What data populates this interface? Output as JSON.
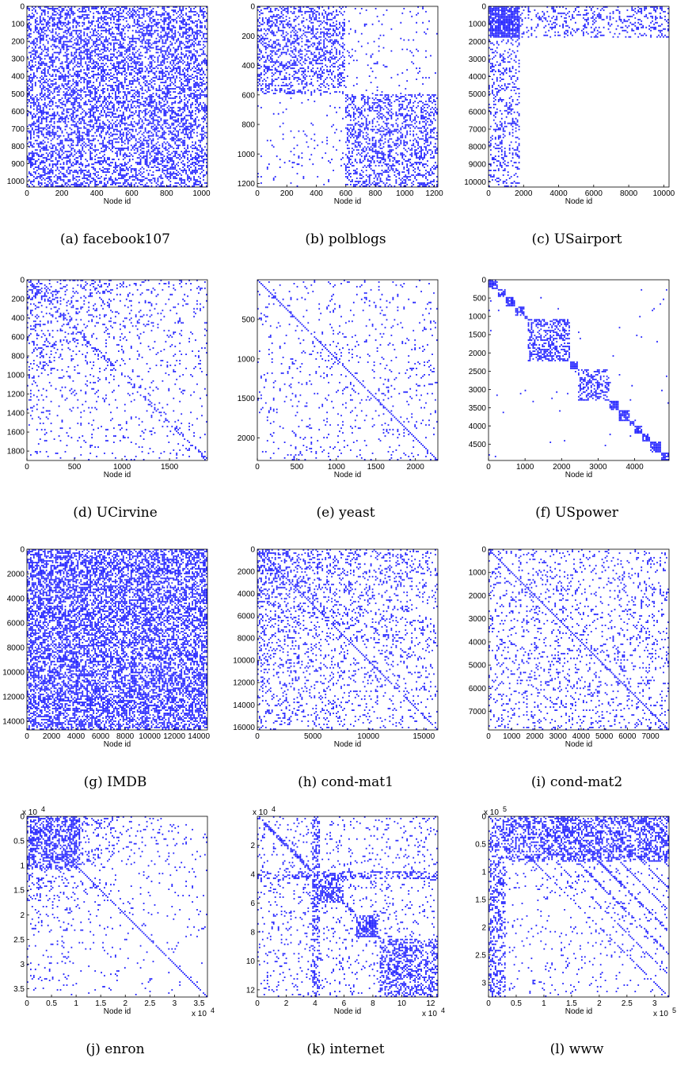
{
  "colors": {
    "dots": "#1515ff",
    "axis": "#000000"
  },
  "chart_data": [
    {
      "type": "heatmap",
      "panel": "facebook107",
      "caption": "(a)  facebook107",
      "xlabel": "Node id",
      "range": [
        0,
        1034
      ],
      "xticks": [
        "0",
        "200",
        "400",
        "600",
        "800",
        "1000"
      ],
      "xtick_values": [
        0,
        200,
        400,
        600,
        800,
        1000
      ],
      "yticks": [
        "0",
        "100",
        "200",
        "300",
        "400",
        "500",
        "600",
        "700",
        "800",
        "900",
        "1000"
      ],
      "ytick_values": [
        0,
        100,
        200,
        300,
        400,
        500,
        600,
        700,
        800,
        900,
        1000
      ],
      "x_multiplier": "",
      "y_multiplier": "",
      "pattern": "dense uniform",
      "density": 0.42
    },
    {
      "type": "heatmap",
      "panel": "polblogs",
      "caption": "(b)  polblogs",
      "xlabel": "Node id",
      "range": [
        0,
        1224
      ],
      "xticks": [
        "0",
        "200",
        "400",
        "600",
        "800",
        "1000",
        "1200"
      ],
      "xtick_values": [
        0,
        200,
        400,
        600,
        800,
        1000,
        1200
      ],
      "yticks": [
        "0",
        "200",
        "400",
        "600",
        "800",
        "1000",
        "1200"
      ],
      "ytick_values": [
        0,
        200,
        400,
        600,
        800,
        1000,
        1200
      ],
      "x_multiplier": "",
      "y_multiplier": "",
      "pattern": "two diagonal blocks split near 600",
      "density": 0.3
    },
    {
      "type": "heatmap",
      "panel": "USairport",
      "caption": "(c)  USairport",
      "xlabel": "Node id",
      "range": [
        0,
        10300
      ],
      "xticks": [
        "0",
        "2000",
        "4000",
        "6000",
        "8000",
        "10000"
      ],
      "xtick_values": [
        0,
        2000,
        4000,
        6000,
        8000,
        10000
      ],
      "yticks": [
        "0",
        "1000",
        "2000",
        "3000",
        "4000",
        "5000",
        "6000",
        "7000",
        "8000",
        "9000",
        "10000"
      ],
      "ytick_values": [
        0,
        1000,
        2000,
        3000,
        4000,
        5000,
        6000,
        7000,
        8000,
        9000,
        10000
      ],
      "x_multiplier": "",
      "y_multiplier": "",
      "pattern": "dense core below 1800 with strips",
      "density": 0.3
    },
    {
      "type": "heatmap",
      "panel": "UCirvine",
      "caption": "(d)  UCirvine",
      "xlabel": "Node id",
      "range": [
        0,
        1899
      ],
      "xticks": [
        "0",
        "500",
        "1000",
        "1500"
      ],
      "xtick_values": [
        0,
        500,
        1000,
        1500
      ],
      "yticks": [
        "0",
        "200",
        "400",
        "600",
        "800",
        "1000",
        "1200",
        "1400",
        "1600",
        "1800"
      ],
      "ytick_values": [
        0,
        200,
        400,
        600,
        800,
        1000,
        1200,
        1400,
        1600,
        1800
      ],
      "x_multiplier": "",
      "y_multiplier": "",
      "pattern": "core-periphery, dense at low ids",
      "density": 0.2
    },
    {
      "type": "heatmap",
      "panel": "yeast",
      "caption": "(e)  yeast",
      "xlabel": "Node id",
      "range": [
        0,
        2284
      ],
      "xticks": [
        "0",
        "500",
        "1000",
        "1500",
        "2000"
      ],
      "xtick_values": [
        0,
        500,
        1000,
        1500,
        2000
      ],
      "yticks": [
        "500",
        "1000",
        "1500",
        "2000"
      ],
      "ytick_values": [
        500,
        1000,
        1500,
        2000
      ],
      "x_multiplier": "",
      "y_multiplier": "",
      "pattern": "sparse with diagonal",
      "density": 0.08
    },
    {
      "type": "heatmap",
      "panel": "USpower",
      "caption": "(f)  USpower",
      "xlabel": "Node id",
      "range": [
        0,
        4941
      ],
      "xticks": [
        "0",
        "1000",
        "2000",
        "3000",
        "4000"
      ],
      "xtick_values": [
        0,
        1000,
        2000,
        3000,
        4000
      ],
      "yticks": [
        "0",
        "500",
        "1000",
        "1500",
        "2000",
        "2500",
        "3000",
        "3500",
        "4000",
        "4500"
      ],
      "ytick_values": [
        0,
        500,
        1000,
        1500,
        2000,
        2500,
        3000,
        3500,
        4000,
        4500
      ],
      "x_multiplier": "",
      "y_multiplier": "",
      "pattern": "block diagonal",
      "density": 0.02
    },
    {
      "type": "heatmap",
      "panel": "IMDB",
      "caption": "(g)  IMDB",
      "xlabel": "Node id",
      "range": [
        0,
        14700
      ],
      "xticks": [
        "0",
        "2000",
        "4000",
        "6000",
        "8000",
        "10000",
        "12000",
        "14000"
      ],
      "xtick_values": [
        0,
        2000,
        4000,
        6000,
        8000,
        10000,
        12000,
        14000
      ],
      "yticks": [
        "0",
        "2000",
        "4000",
        "6000",
        "8000",
        "10000",
        "12000",
        "14000"
      ],
      "ytick_values": [
        0,
        2000,
        4000,
        6000,
        8000,
        10000,
        12000,
        14000
      ],
      "x_multiplier": "",
      "y_multiplier": "",
      "pattern": "very dense uniform",
      "density": 0.55
    },
    {
      "type": "heatmap",
      "panel": "cond-mat1",
      "caption": "(h)  cond-mat1",
      "xlabel": "Node id",
      "range": [
        0,
        16264
      ],
      "xticks": [
        "0",
        "5000",
        "10000",
        "15000"
      ],
      "xtick_values": [
        0,
        5000,
        10000,
        15000
      ],
      "yticks": [
        "0",
        "2000",
        "4000",
        "6000",
        "8000",
        "10000",
        "12000",
        "14000",
        "16000"
      ],
      "ytick_values": [
        0,
        2000,
        4000,
        6000,
        8000,
        10000,
        12000,
        14000,
        16000
      ],
      "x_multiplier": "",
      "y_multiplier": "",
      "pattern": "dense upper-left fading, with diagonal",
      "density": 0.3
    },
    {
      "type": "heatmap",
      "panel": "cond-mat2",
      "caption": "(i)  cond-mat2",
      "xlabel": "Node id",
      "range": [
        0,
        7800
      ],
      "xticks": [
        "0",
        "1000",
        "2000",
        "3000",
        "4000",
        "5000",
        "6000",
        "7000"
      ],
      "xtick_values": [
        0,
        1000,
        2000,
        3000,
        4000,
        5000,
        6000,
        7000
      ],
      "yticks": [
        "0",
        "1000",
        "2000",
        "3000",
        "4000",
        "5000",
        "6000",
        "7000"
      ],
      "ytick_values": [
        0,
        1000,
        2000,
        3000,
        4000,
        5000,
        6000,
        7000
      ],
      "x_multiplier": "",
      "y_multiplier": "",
      "pattern": "sparse uniform with diagonal",
      "density": 0.12
    },
    {
      "type": "heatmap",
      "panel": "enron",
      "caption": "(j)  enron",
      "xlabel": "Node id",
      "range": [
        0,
        3.67
      ],
      "xticks": [
        "0",
        "0.5",
        "1",
        "1.5",
        "2",
        "2.5",
        "3",
        "3.5"
      ],
      "xtick_values": [
        0,
        0.5,
        1,
        1.5,
        2,
        2.5,
        3,
        3.5
      ],
      "yticks": [
        "0",
        "0.5",
        "1",
        "1.5",
        "2",
        "2.5",
        "3",
        "3.5"
      ],
      "ytick_values": [
        0,
        0.5,
        1,
        1.5,
        2,
        2.5,
        3,
        3.5
      ],
      "x_multiplier": "x 10",
      "y_multiplier": "x 10",
      "multiplier_exponent": "4",
      "pattern": "dense upper-left triangle with diagonal",
      "density": 0.3
    },
    {
      "type": "heatmap",
      "panel": "internet",
      "caption": "(k)  internet",
      "xlabel": "Node id",
      "range": [
        0,
        12.5
      ],
      "xticks": [
        "0",
        "2",
        "4",
        "6",
        "8",
        "10",
        "12"
      ],
      "xtick_values": [
        0,
        2,
        4,
        6,
        8,
        10,
        12
      ],
      "yticks": [
        "2",
        "4",
        "6",
        "8",
        "10",
        "12"
      ],
      "ytick_values": [
        2,
        4,
        6,
        8,
        10,
        12
      ],
      "x_multiplier": "x 10",
      "y_multiplier": "x 10",
      "multiplier_exponent": "4",
      "pattern": "banded blocks",
      "density": 0.35
    },
    {
      "type": "heatmap",
      "panel": "www",
      "caption": "(l)  www",
      "xlabel": "Node id",
      "range": [
        0,
        3.26
      ],
      "xticks": [
        "0",
        "0.5",
        "1",
        "1.5",
        "2",
        "2.5",
        "3"
      ],
      "xtick_values": [
        0,
        0.5,
        1,
        1.5,
        2,
        2.5,
        3
      ],
      "yticks": [
        "0",
        "0.5",
        "1",
        "1.5",
        "2",
        "2.5",
        "3"
      ],
      "ytick_values": [
        0,
        0.5,
        1,
        1.5,
        2,
        2.5,
        3
      ],
      "x_multiplier": "x 10",
      "y_multiplier": "x 10",
      "multiplier_exponent": "5",
      "pattern": "dense upper rows with parallel diagonals",
      "density": 0.3
    }
  ]
}
